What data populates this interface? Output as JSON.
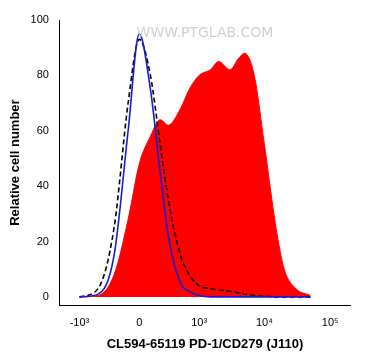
{
  "chart_data": {
    "type": "line",
    "x_label": "CL594-65119 PD-1/CD279 (J110)",
    "y_label": "Relative cell number",
    "annotations": [
      "WWW.PTGLAB.COM"
    ],
    "log": "x",
    "grid": false,
    "x": [
      -1000,
      -500,
      -250,
      -100,
      0,
      100,
      200,
      300,
      500,
      700,
      1000,
      1500,
      2000,
      3000,
      4000,
      5000,
      7000,
      10000,
      15000,
      20000,
      30000,
      50000
    ],
    "series": [
      {
        "type": "area",
        "color": "#ff0000",
        "line_style": "solid",
        "values": [
          0,
          0.5,
          8,
          28,
          48,
          58,
          64,
          62,
          68,
          75,
          80,
          82,
          85,
          82,
          86,
          88,
          80,
          55,
          25,
          10,
          3,
          0.5
        ]
      },
      {
        "type": "line",
        "color": "#1a1acc",
        "line_style": "solid",
        "values": [
          0,
          1,
          15,
          60,
          95,
          75,
          45,
          22,
          5,
          2,
          0.5,
          0,
          0,
          0,
          0,
          0,
          0,
          0,
          0,
          0,
          0,
          0
        ]
      },
      {
        "type": "line",
        "color": "#000000",
        "line_style": "dashed",
        "values": [
          0,
          3,
          25,
          70,
          93,
          80,
          55,
          35,
          15,
          8,
          4,
          3,
          2.5,
          2,
          1.5,
          1,
          0.5,
          0.3,
          0,
          0,
          0,
          0
        ]
      }
    ],
    "xlim": [
      -2000,
      200000
    ],
    "xticks": [
      {
        "value": -1000,
        "label": "-10³"
      },
      0,
      {
        "value": 1000,
        "label": "10³"
      },
      {
        "value": 10000,
        "label": "10⁴"
      },
      {
        "value": 100000,
        "label": "10⁵"
      }
    ],
    "ylim": [
      -3,
      100
    ],
    "yticks": [
      0,
      20,
      40,
      60,
      80,
      100
    ]
  }
}
